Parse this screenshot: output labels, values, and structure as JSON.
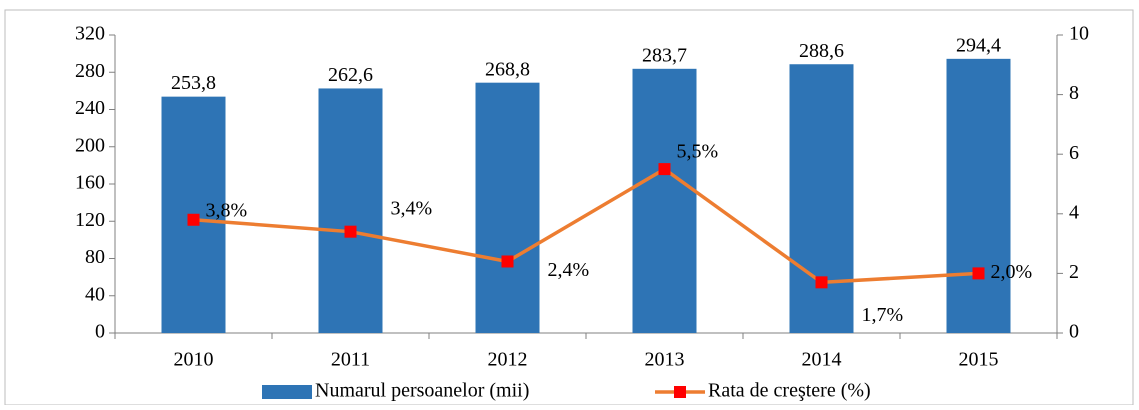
{
  "chart_data": {
    "type": "bar-line",
    "categories": [
      "2010",
      "2011",
      "2012",
      "2013",
      "2014",
      "2015"
    ],
    "series": [
      {
        "name": "Numarul persoanelor (mii)",
        "type": "bar",
        "color": "#2e74b5",
        "values": [
          253.8,
          262.6,
          268.8,
          283.7,
          288.6,
          294.4
        ],
        "value_labels": [
          "253,8",
          "262,6",
          "268,8",
          "283,7",
          "288,6",
          "294,4"
        ]
      },
      {
        "name": "Rata de creştere (%)",
        "type": "line",
        "axis": "y2",
        "color": "#ed7d31",
        "marker_color": "#ff0000",
        "values": [
          3.8,
          3.4,
          2.4,
          5.5,
          1.7,
          2.0
        ],
        "value_labels": [
          "3,8%",
          "3,4%",
          "2,4%",
          "5,5%",
          "1,7%",
          "2,0%"
        ]
      }
    ],
    "ylim": [
      0,
      320
    ],
    "yticks": [
      0,
      40,
      80,
      120,
      160,
      200,
      240,
      280,
      320
    ],
    "y2lim": [
      0,
      10
    ],
    "y2ticks": [
      0,
      2,
      4,
      6,
      8,
      10
    ],
    "grid": false,
    "legend": "bottom"
  }
}
